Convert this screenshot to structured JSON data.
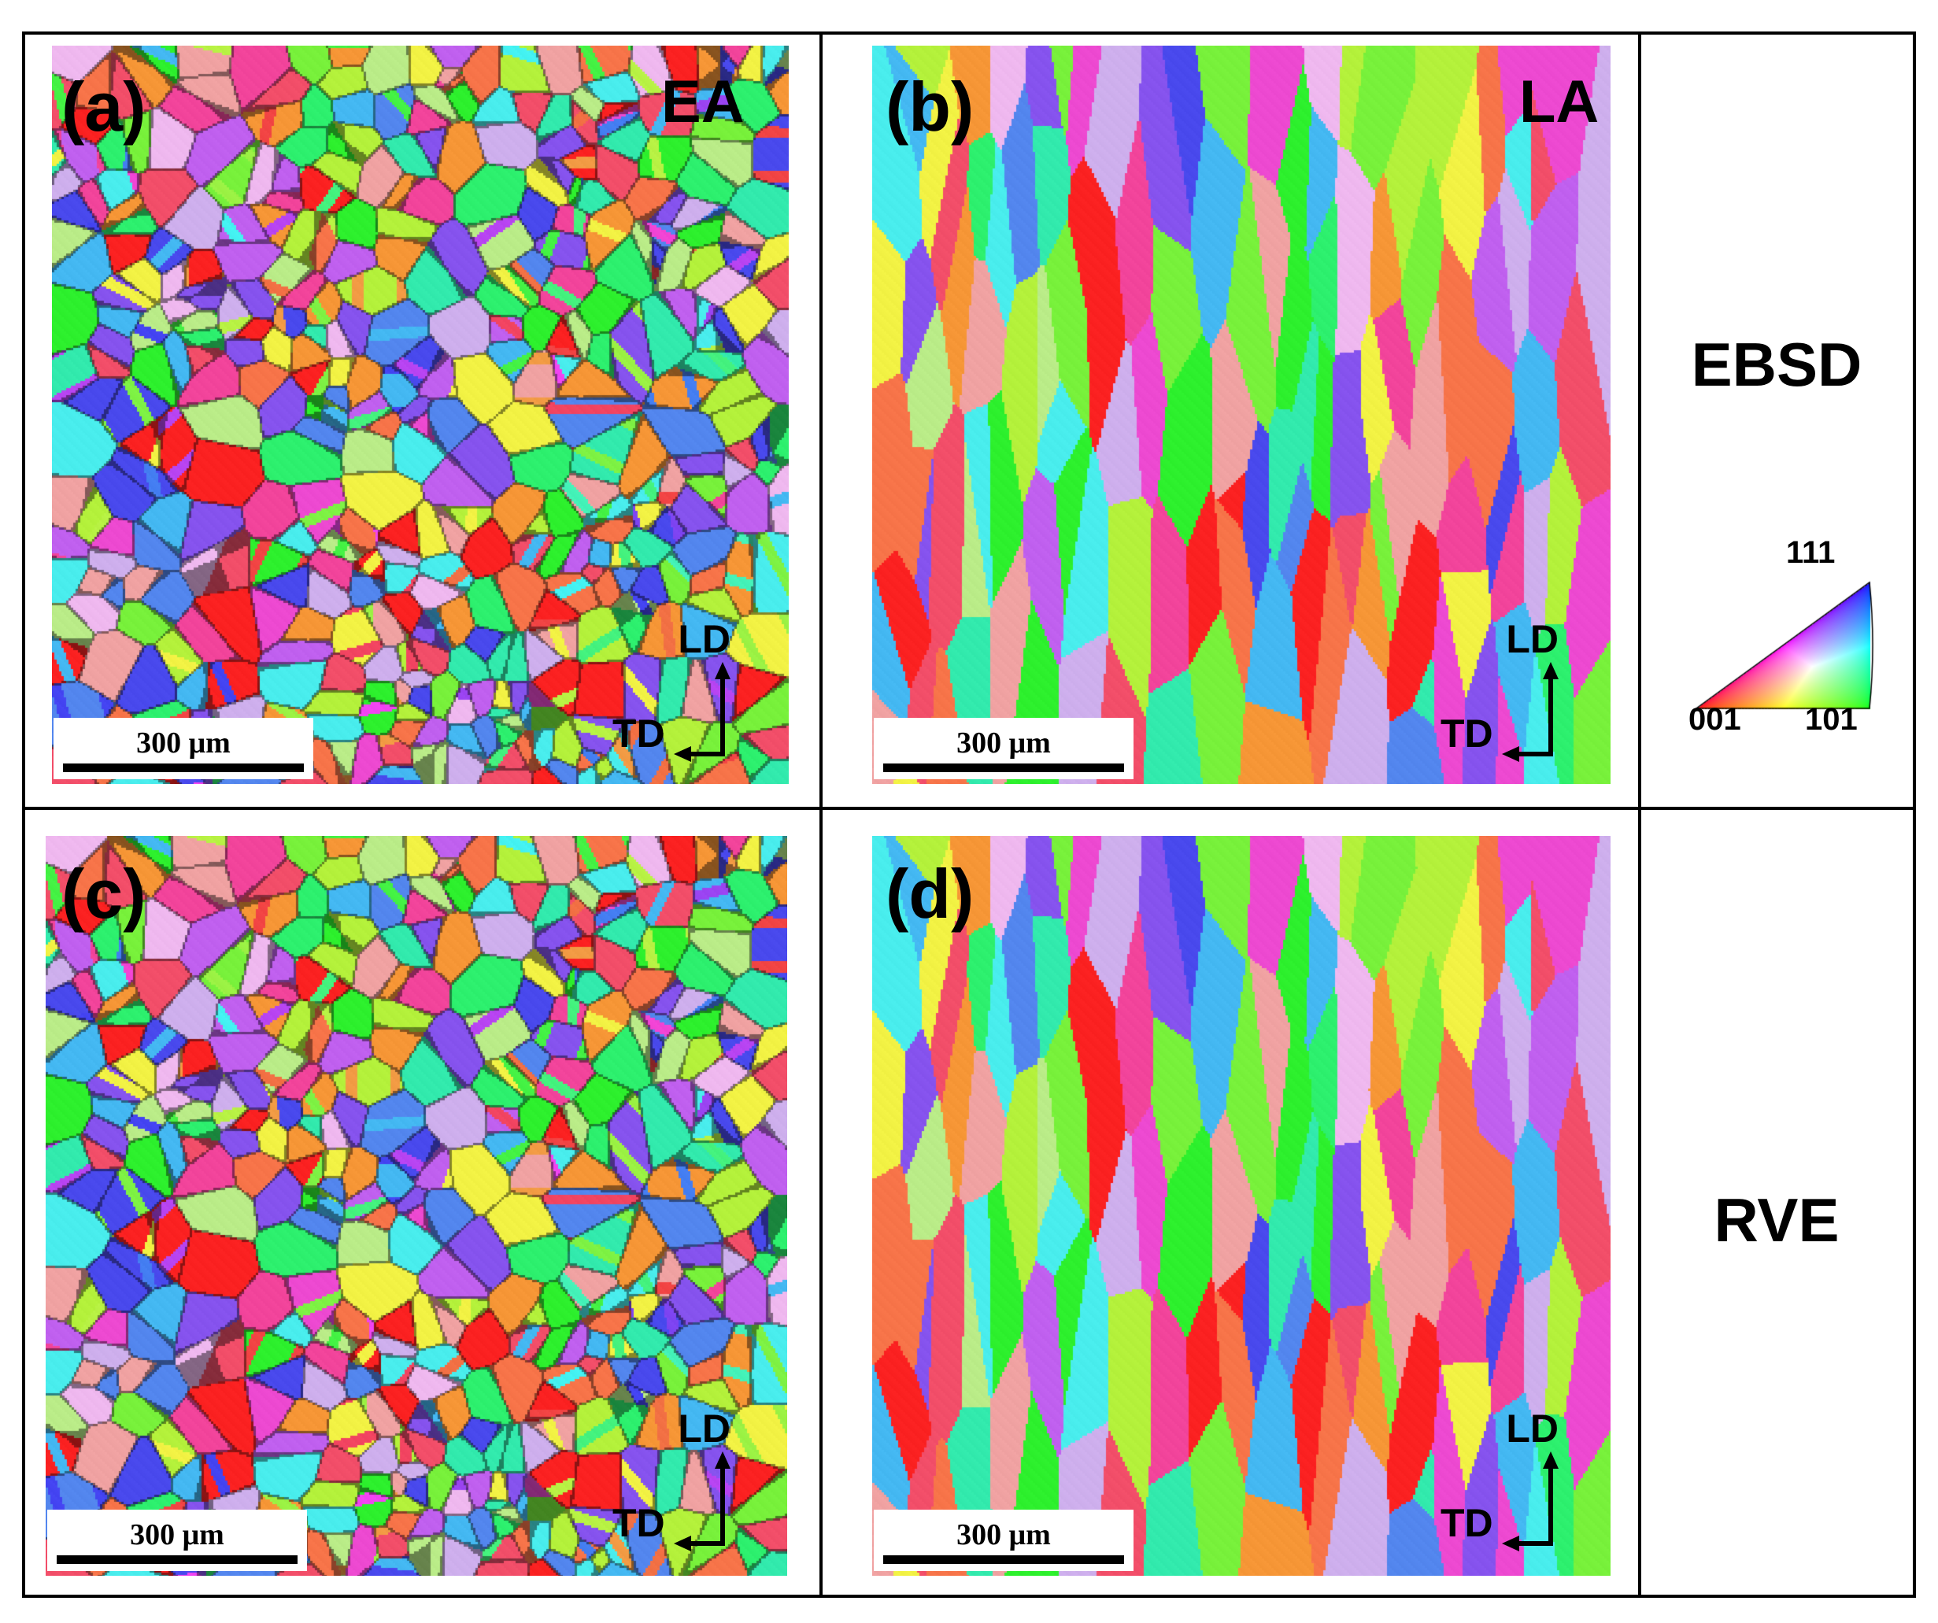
{
  "panels": [
    {
      "id": "a",
      "label": "(a)",
      "condition": "EA",
      "scale_text": "300 μm",
      "axis_up": "LD",
      "axis_left": "TD",
      "texture": "equiaxed",
      "seed": 11
    },
    {
      "id": "b",
      "label": "(b)",
      "condition": "LA",
      "scale_text": "300 μm",
      "axis_up": "LD",
      "axis_left": "TD",
      "texture": "columnar",
      "seed": 23
    },
    {
      "id": "c",
      "label": "(c)",
      "condition": "",
      "scale_text": "300 μm",
      "axis_up": "LD",
      "axis_left": "TD",
      "texture": "equiaxed",
      "seed": 11
    },
    {
      "id": "d",
      "label": "(d)",
      "condition": "",
      "scale_text": "300 μm",
      "axis_up": "LD",
      "axis_left": "TD",
      "texture": "columnar",
      "seed": 23
    }
  ],
  "rows": [
    {
      "label": "EBSD"
    },
    {
      "label": "RVE"
    }
  ],
  "ipf_key": {
    "corner_top": "111",
    "corner_left": "001",
    "corner_right": "101"
  },
  "colors": {
    "ipf_001": "#ff0000",
    "ipf_101": "#00ff00",
    "ipf_111": "#0000ff",
    "frame": "#000000"
  }
}
